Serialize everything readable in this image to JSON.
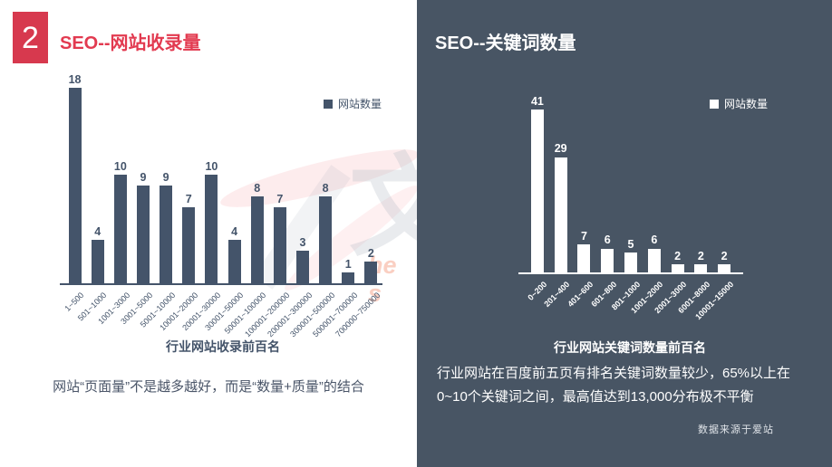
{
  "slide_number": "2",
  "left": {
    "title": "SEO--网站收录量",
    "caption": "网站“页面量”不是越多越好，而是“数量+质量”的结合"
  },
  "right": {
    "title": "SEO--关键词数量",
    "caption": "行业网站在百度前五页有排名关键词数量较少，65%以上在0~10个关键词之间，最高值达到13,000分布极不平衡",
    "source": "数据来源于爱站"
  },
  "watermark": {
    "glyph": "文",
    "latin": "he s"
  },
  "colors": {
    "accent_red_box": "#d7394e",
    "title_red": "#e23a50",
    "bar_dark": "#44546a",
    "panel_dark_bg": "#485564",
    "bar_white": "#ffffff"
  },
  "chart_data": [
    {
      "type": "bar",
      "title": "SEO--网站收录量",
      "legend": [
        "网站数量"
      ],
      "categories": [
        "1~500",
        "501~1000",
        "1001~3000",
        "3001~5000",
        "5001~10000",
        "10001~20000",
        "20001~30000",
        "30001~50000",
        "50001~100000",
        "100001~200000",
        "200001~300000",
        "300001~500000",
        "500001~700000",
        "700000~750000"
      ],
      "values": [
        18,
        4,
        10,
        9,
        9,
        7,
        10,
        4,
        8,
        7,
        3,
        8,
        1,
        2
      ],
      "xlabel": "行业网站收录前百名",
      "ylabel": "",
      "ylim": [
        0,
        18
      ],
      "grid": false,
      "legend_position": "top-right",
      "bar_color": "#44546a"
    },
    {
      "type": "bar",
      "title": "SEO--关键词数量",
      "legend": [
        "网站数量"
      ],
      "categories": [
        "0~200",
        "201~400",
        "401~600",
        "601~800",
        "801~1000",
        "1001~2000",
        "2001~3000",
        "6001~8000",
        "10001~15000"
      ],
      "values": [
        41,
        29,
        7,
        6,
        5,
        6,
        2,
        2,
        2
      ],
      "xlabel": "行业网站关键词数量前百名",
      "ylabel": "",
      "ylim": [
        0,
        41
      ],
      "grid": false,
      "legend_position": "top-right",
      "bar_color": "#ffffff"
    }
  ]
}
